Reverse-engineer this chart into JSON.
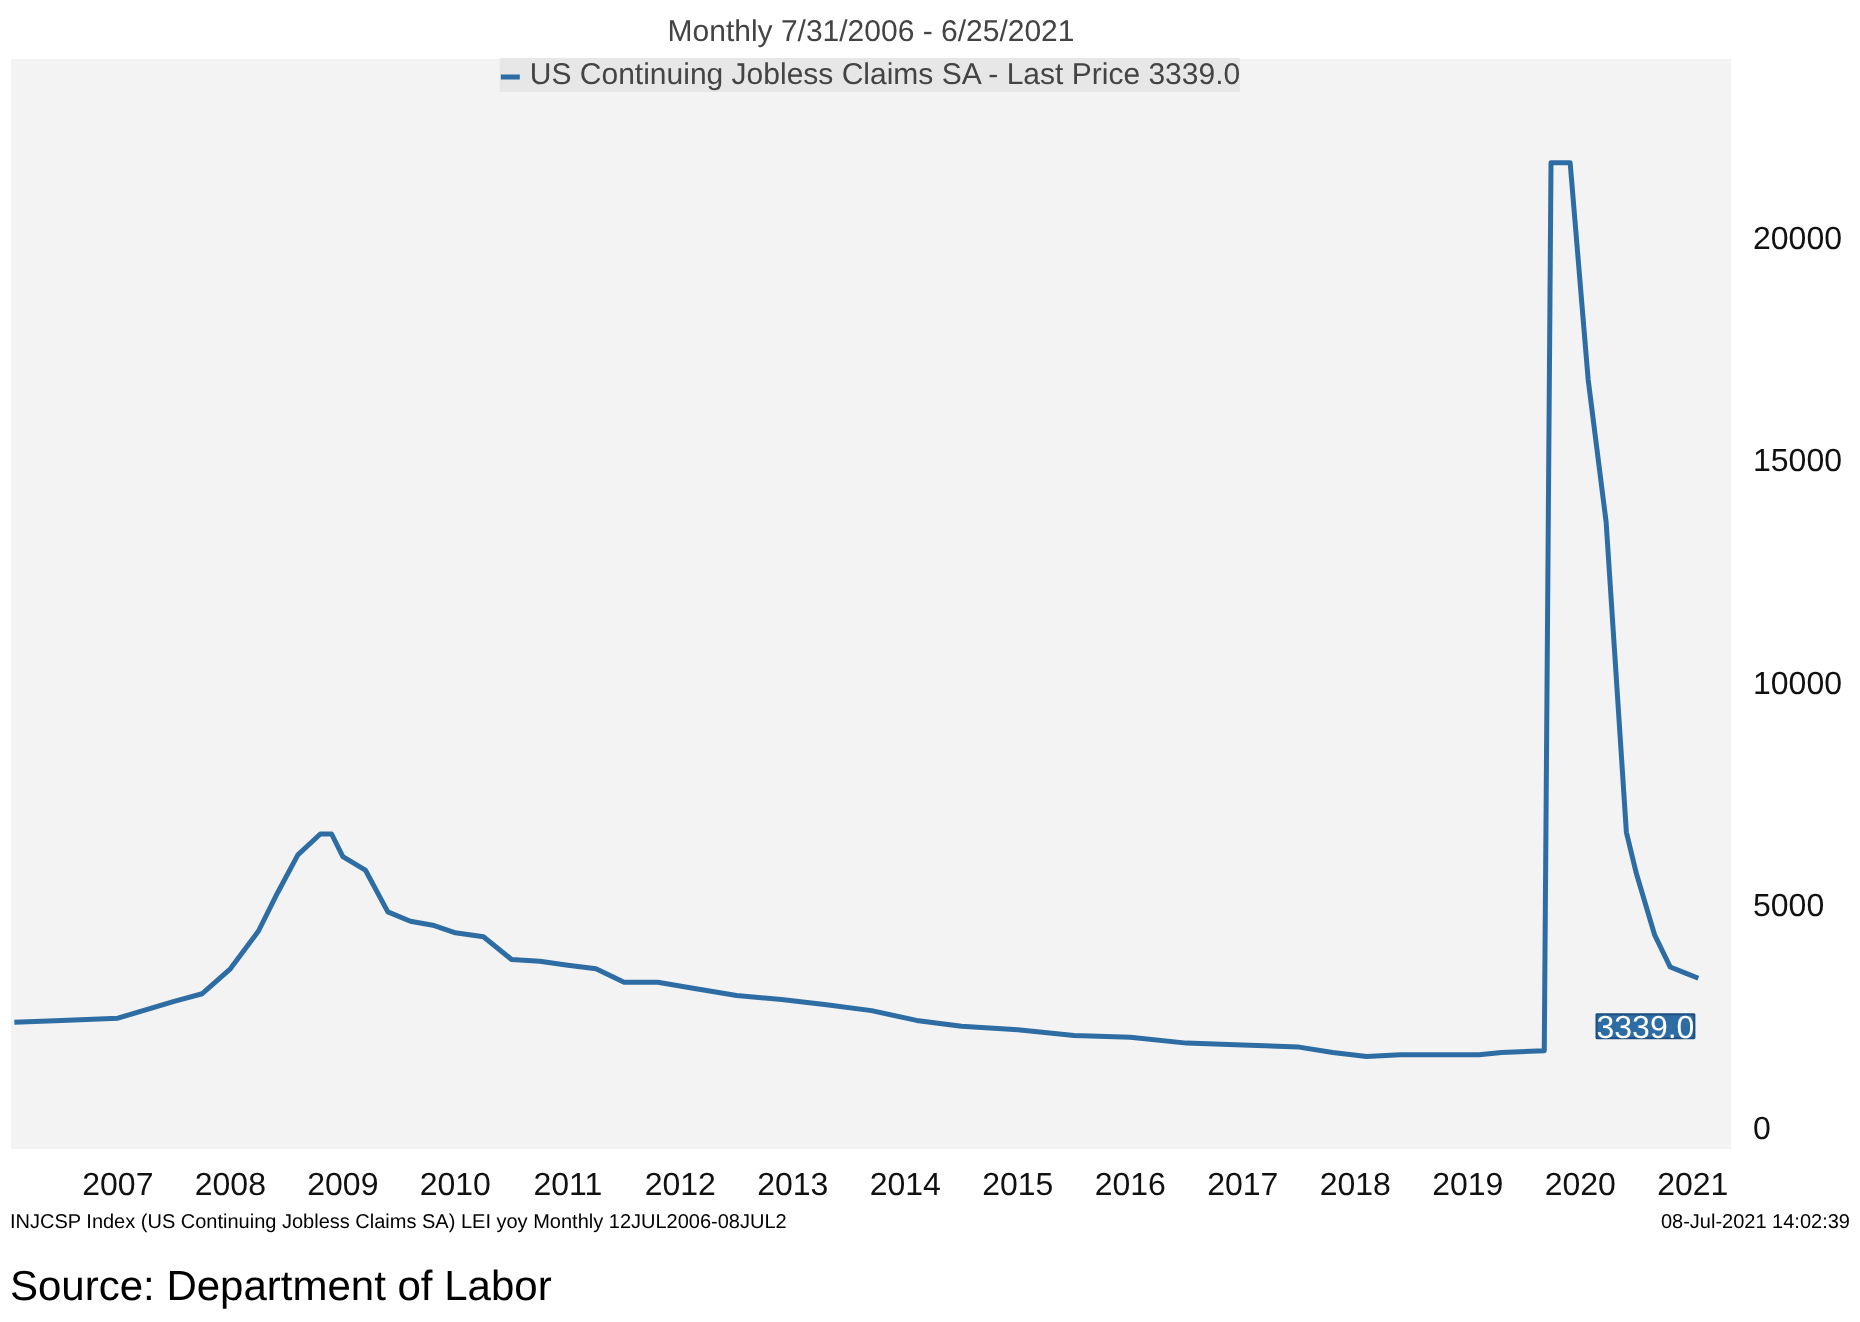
{
  "chart_data": {
    "type": "line",
    "subtitle": "Monthly 7/31/2006 - 6/25/2021",
    "x": [
      2006.58,
      2007.0,
      2007.5,
      2008.0,
      2008.25,
      2008.5,
      2008.75,
      2008.92,
      2009.1,
      2009.3,
      2009.4,
      2009.5,
      2009.7,
      2009.9,
      2010.1,
      2010.3,
      2010.5,
      2010.75,
      2011.0,
      2011.25,
      2011.5,
      2011.75,
      2012.0,
      2012.3,
      2012.6,
      2013.0,
      2013.4,
      2013.8,
      2014.2,
      2014.6,
      2015.0,
      2015.5,
      2016.0,
      2016.5,
      2017.0,
      2017.5,
      2018.0,
      2018.3,
      2018.6,
      2018.9,
      2019.2,
      2019.6,
      2019.8,
      2020.18,
      2020.24,
      2020.41,
      2020.57,
      2020.73,
      2020.91,
      2021.0,
      2021.16,
      2021.3,
      2021.43,
      2021.55
    ],
    "series": [
      {
        "name": "US Continuing Jobless Claims SA - Last Price 3339.0",
        "color": "#2e6da4",
        "values": [
          2350,
          2390,
          2440,
          2820,
          2990,
          3550,
          4400,
          5260,
          6110,
          6580,
          6580,
          6070,
          5770,
          4830,
          4620,
          4530,
          4360,
          4270,
          3760,
          3720,
          3630,
          3550,
          3250,
          3250,
          3120,
          2950,
          2860,
          2740,
          2610,
          2390,
          2260,
          2180,
          2050,
          2010,
          1880,
          1840,
          1790,
          1670,
          1580,
          1620,
          1620,
          1620,
          1670,
          1710,
          21670,
          21670,
          16800,
          13590,
          6620,
          5680,
          4320,
          3590,
          3460,
          3339
        ]
      }
    ],
    "xlim": [
      2006.55,
      2021.84
    ],
    "ylim": [
      -500,
      24000
    ],
    "xticks": [
      {
        "value": 2007.5,
        "label": "2007"
      },
      {
        "value": 2008.5,
        "label": "2008"
      },
      {
        "value": 2009.5,
        "label": "2009"
      },
      {
        "value": 2010.5,
        "label": "2010"
      },
      {
        "value": 2011.5,
        "label": "2011"
      },
      {
        "value": 2012.5,
        "label": "2012"
      },
      {
        "value": 2013.5,
        "label": "2013"
      },
      {
        "value": 2014.5,
        "label": "2014"
      },
      {
        "value": 2015.5,
        "label": "2015"
      },
      {
        "value": 2016.5,
        "label": "2016"
      },
      {
        "value": 2017.5,
        "label": "2017"
      },
      {
        "value": 2018.5,
        "label": "2018"
      },
      {
        "value": 2019.5,
        "label": "2019"
      },
      {
        "value": 2020.5,
        "label": "2020"
      },
      {
        "value": 2021.5,
        "label": "2021"
      }
    ],
    "yticks": [
      0,
      5000,
      10000,
      15000,
      20000
    ],
    "annotations": [
      "INJCSP Index (US Continuing Jobless Claims SA) LEI yoy  Monthly 12JUL2006-08JUL2",
      "08-Jul-2021 14:02:39",
      "Source: Department of Labor",
      {
        "text": "3339.0",
        "x": 2021.55,
        "y": 3339
      }
    ],
    "legend": "top",
    "grid": false,
    "marker": "none",
    "line_style": "solid"
  }
}
